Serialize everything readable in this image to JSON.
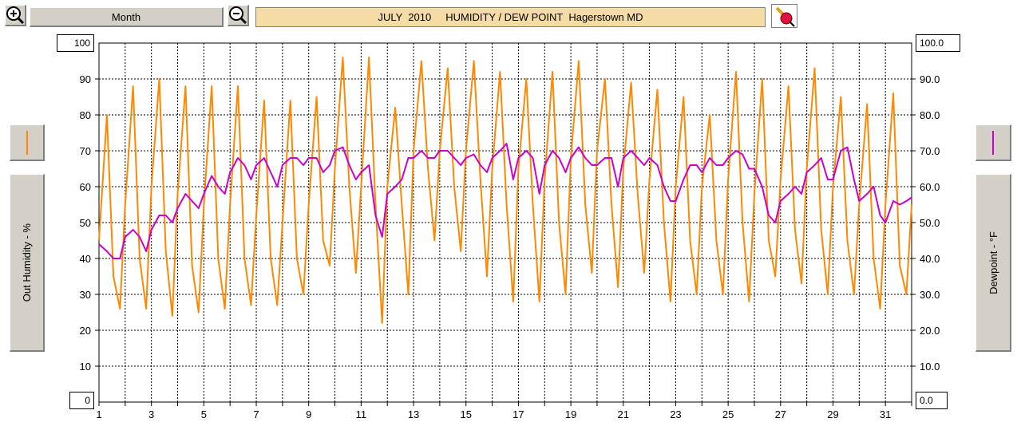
{
  "toolbar": {
    "zoom_in_icon": "zoom-in-magnifier-icon",
    "period_label": "Month",
    "zoom_out_icon": "zoom-out-magnifier-icon",
    "title": "JULY  2010     HUMIDITY / DEW POINT  Hagerstown MD",
    "tool_icon": "eraser-pencil-icon"
  },
  "left_axis": {
    "top_value": "100",
    "bottom_value": "0",
    "label": "Out Humidity - %",
    "series_color": "#ff8800"
  },
  "right_axis": {
    "top_value": "100.0",
    "bottom_value": "0.0",
    "label": "Dewpoint - °F",
    "series_color": "#cc00cc"
  },
  "chart_data": {
    "type": "line",
    "title": "JULY  2010     HUMIDITY / DEW POINT  Hagerstown MD",
    "xlabel": "",
    "xlim": [
      1,
      32
    ],
    "x_ticks": [
      "1",
      "3",
      "5",
      "7",
      "9",
      "11",
      "13",
      "15",
      "17",
      "19",
      "21",
      "23",
      "25",
      "27",
      "29",
      "31"
    ],
    "left_ylabel": "Out Humidity - %",
    "left_ylim": [
      0,
      100
    ],
    "left_y_ticks": [
      "90",
      "80",
      "70",
      "60",
      "50",
      "40",
      "30",
      "20",
      "10"
    ],
    "right_ylabel": "Dewpoint - °F",
    "right_ylim": [
      0,
      100
    ],
    "right_y_ticks": [
      "90.0",
      "80.0",
      "70.0",
      "60.0",
      "50.0",
      "40.0",
      "30.0",
      "20.0",
      "10.0"
    ],
    "grid": true,
    "series": [
      {
        "name": "Out Humidity - %",
        "axis": "left",
        "color": "#ff8800",
        "x": [
          1.0,
          1.3,
          1.55,
          1.8,
          2.0,
          2.3,
          2.55,
          2.8,
          3.0,
          3.3,
          3.55,
          3.8,
          4.0,
          4.3,
          4.55,
          4.8,
          5.0,
          5.3,
          5.55,
          5.8,
          6.0,
          6.3,
          6.55,
          6.8,
          7.0,
          7.3,
          7.55,
          7.8,
          8.0,
          8.3,
          8.55,
          8.8,
          9.0,
          9.3,
          9.55,
          9.8,
          10.0,
          10.3,
          10.55,
          10.8,
          11.0,
          11.3,
          11.55,
          11.8,
          12.0,
          12.3,
          12.55,
          12.8,
          13.0,
          13.3,
          13.55,
          13.8,
          14.0,
          14.3,
          14.55,
          14.8,
          15.0,
          15.3,
          15.55,
          15.8,
          16.0,
          16.3,
          16.55,
          16.8,
          17.0,
          17.3,
          17.55,
          17.8,
          18.0,
          18.3,
          18.55,
          18.8,
          19.0,
          19.3,
          19.55,
          19.8,
          20.0,
          20.3,
          20.55,
          20.8,
          21.0,
          21.3,
          21.55,
          21.8,
          22.0,
          22.3,
          22.55,
          22.8,
          23.0,
          23.3,
          23.55,
          23.8,
          24.0,
          24.3,
          24.55,
          24.8,
          25.0,
          25.3,
          25.55,
          25.8,
          26.0,
          26.3,
          26.55,
          26.8,
          27.0,
          27.3,
          27.55,
          27.8,
          28.0,
          28.3,
          28.55,
          28.8,
          29.0,
          29.3,
          29.55,
          29.8,
          30.0,
          30.3,
          30.55,
          30.8,
          31.0,
          31.3,
          31.55,
          31.8,
          32.0
        ],
        "values": [
          45,
          80,
          35,
          26,
          55,
          88,
          40,
          26,
          60,
          90,
          42,
          24,
          58,
          88,
          38,
          25,
          55,
          88,
          40,
          26,
          55,
          88,
          40,
          27,
          52,
          84,
          40,
          27,
          50,
          84,
          40,
          30,
          55,
          85,
          45,
          38,
          65,
          96,
          60,
          36,
          60,
          96,
          55,
          22,
          60,
          82,
          55,
          30,
          70,
          95,
          65,
          45,
          70,
          93,
          60,
          42,
          70,
          95,
          62,
          35,
          65,
          92,
          55,
          28,
          65,
          90,
          55,
          28,
          62,
          92,
          50,
          30,
          68,
          95,
          55,
          36,
          70,
          90,
          55,
          32,
          65,
          89,
          58,
          36,
          62,
          87,
          50,
          28,
          60,
          85,
          45,
          30,
          60,
          80,
          45,
          30,
          62,
          92,
          50,
          28,
          58,
          90,
          45,
          35,
          62,
          88,
          48,
          33,
          65,
          93,
          48,
          30,
          60,
          85,
          45,
          30,
          55,
          83,
          40,
          26,
          55,
          86,
          38,
          30,
          55
        ]
      },
      {
        "name": "Dewpoint - °F",
        "axis": "right",
        "color": "#cc00cc",
        "x": [
          1.0,
          1.3,
          1.55,
          1.8,
          2.0,
          2.3,
          2.55,
          2.8,
          3.0,
          3.3,
          3.55,
          3.8,
          4.0,
          4.3,
          4.55,
          4.8,
          5.0,
          5.3,
          5.55,
          5.8,
          6.0,
          6.3,
          6.55,
          6.8,
          7.0,
          7.3,
          7.55,
          7.8,
          8.0,
          8.3,
          8.55,
          8.8,
          9.0,
          9.3,
          9.55,
          9.8,
          10.0,
          10.3,
          10.55,
          10.8,
          11.0,
          11.3,
          11.55,
          11.8,
          12.0,
          12.3,
          12.55,
          12.8,
          13.0,
          13.3,
          13.55,
          13.8,
          14.0,
          14.3,
          14.55,
          14.8,
          15.0,
          15.3,
          15.55,
          15.8,
          16.0,
          16.3,
          16.55,
          16.8,
          17.0,
          17.3,
          17.55,
          17.8,
          18.0,
          18.3,
          18.55,
          18.8,
          19.0,
          19.3,
          19.55,
          19.8,
          20.0,
          20.3,
          20.55,
          20.8,
          21.0,
          21.3,
          21.55,
          21.8,
          22.0,
          22.3,
          22.55,
          22.8,
          23.0,
          23.3,
          23.55,
          23.8,
          24.0,
          24.3,
          24.55,
          24.8,
          25.0,
          25.3,
          25.55,
          25.8,
          26.0,
          26.3,
          26.55,
          26.8,
          27.0,
          27.3,
          27.55,
          27.8,
          28.0,
          28.3,
          28.55,
          28.8,
          29.0,
          29.3,
          29.55,
          29.8,
          30.0,
          30.3,
          30.55,
          30.8,
          31.0,
          31.3,
          31.55,
          31.8,
          32.0
        ],
        "values": [
          44,
          42,
          40,
          40,
          46,
          48,
          46,
          42,
          48,
          52,
          52,
          50,
          54,
          58,
          56,
          54,
          58,
          63,
          60,
          58,
          64,
          68,
          66,
          62,
          66,
          68,
          64,
          60,
          66,
          68,
          68,
          66,
          68,
          68,
          64,
          66,
          70,
          71,
          66,
          62,
          64,
          66,
          52,
          46,
          58,
          60,
          62,
          68,
          68,
          70,
          68,
          68,
          70,
          70,
          68,
          66,
          68,
          69,
          66,
          64,
          68,
          70,
          72,
          62,
          68,
          70,
          68,
          58,
          66,
          70,
          68,
          64,
          68,
          71,
          68,
          66,
          66,
          68,
          68,
          60,
          68,
          70,
          68,
          66,
          68,
          66,
          60,
          56,
          56,
          62,
          66,
          66,
          64,
          68,
          66,
          66,
          68,
          70,
          69,
          65,
          65,
          60,
          52,
          50,
          56,
          58,
          60,
          58,
          64,
          66,
          68,
          62,
          62,
          70,
          71,
          62,
          56,
          58,
          60,
          52,
          50,
          56,
          55,
          56,
          57
        ]
      }
    ]
  }
}
